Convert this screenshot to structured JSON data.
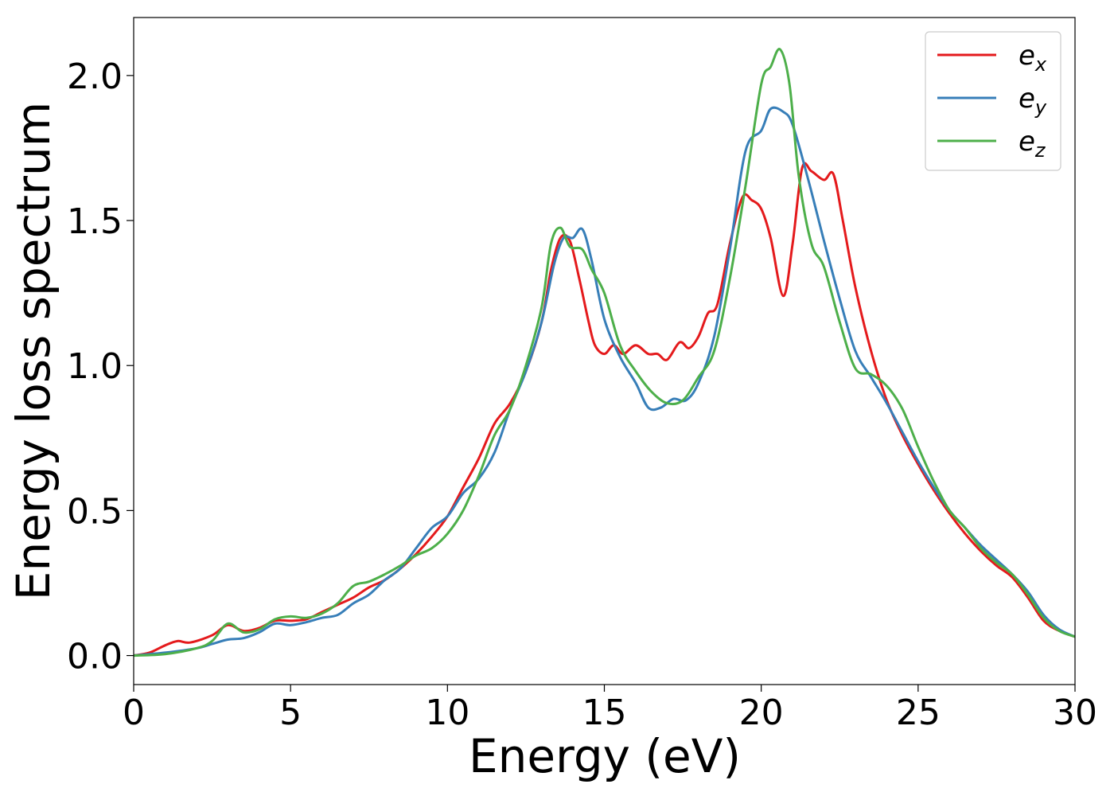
{
  "chart_data": {
    "type": "line",
    "xlabel": "Energy (eV)",
    "ylabel": "Energy loss spectrum",
    "xlim": [
      0,
      30
    ],
    "ylim": [
      -0.1,
      2.2
    ],
    "xticks": [
      0,
      5,
      10,
      15,
      20,
      25,
      30
    ],
    "xtick_labels": [
      "0",
      "5",
      "10",
      "15",
      "20",
      "25",
      "30"
    ],
    "yticks": [
      0.0,
      0.5,
      1.0,
      1.5,
      2.0
    ],
    "ytick_labels": [
      "0.0",
      "0.5",
      "1.0",
      "1.5",
      "2.0"
    ],
    "grid": false,
    "legend_position": "top-right",
    "series": [
      {
        "name": "e_x",
        "label_base": "e",
        "label_sub": "x",
        "color": "#e41a1c",
        "points": [
          [
            0,
            0
          ],
          [
            0.5,
            0.01
          ],
          [
            1,
            0.035
          ],
          [
            1.4,
            0.05
          ],
          [
            1.8,
            0.045
          ],
          [
            2.5,
            0.07
          ],
          [
            3,
            0.105
          ],
          [
            3.5,
            0.085
          ],
          [
            4,
            0.095
          ],
          [
            4.5,
            0.12
          ],
          [
            5,
            0.12
          ],
          [
            5.5,
            0.125
          ],
          [
            6,
            0.15
          ],
          [
            6.5,
            0.175
          ],
          [
            7,
            0.2
          ],
          [
            7.5,
            0.235
          ],
          [
            8,
            0.26
          ],
          [
            8.5,
            0.3
          ],
          [
            9,
            0.35
          ],
          [
            9.5,
            0.41
          ],
          [
            10,
            0.48
          ],
          [
            10.5,
            0.58
          ],
          [
            11,
            0.68
          ],
          [
            11.5,
            0.8
          ],
          [
            12,
            0.87
          ],
          [
            12.5,
            0.98
          ],
          [
            13,
            1.15
          ],
          [
            13.3,
            1.33
          ],
          [
            13.6,
            1.44
          ],
          [
            13.9,
            1.43
          ],
          [
            14.2,
            1.3
          ],
          [
            14.5,
            1.15
          ],
          [
            14.7,
            1.07
          ],
          [
            15,
            1.04
          ],
          [
            15.3,
            1.07
          ],
          [
            15.6,
            1.04
          ],
          [
            16,
            1.07
          ],
          [
            16.4,
            1.04
          ],
          [
            16.7,
            1.04
          ],
          [
            17,
            1.02
          ],
          [
            17.4,
            1.08
          ],
          [
            17.7,
            1.06
          ],
          [
            18,
            1.1
          ],
          [
            18.3,
            1.18
          ],
          [
            18.6,
            1.21
          ],
          [
            19,
            1.42
          ],
          [
            19.4,
            1.58
          ],
          [
            19.7,
            1.57
          ],
          [
            20,
            1.54
          ],
          [
            20.3,
            1.44
          ],
          [
            20.7,
            1.24
          ],
          [
            21,
            1.42
          ],
          [
            21.3,
            1.68
          ],
          [
            21.6,
            1.67
          ],
          [
            22,
            1.64
          ],
          [
            22.3,
            1.66
          ],
          [
            22.6,
            1.5
          ],
          [
            23,
            1.27
          ],
          [
            23.5,
            1.05
          ],
          [
            24,
            0.88
          ],
          [
            24.5,
            0.76
          ],
          [
            25,
            0.66
          ],
          [
            25.5,
            0.57
          ],
          [
            26,
            0.49
          ],
          [
            26.5,
            0.42
          ],
          [
            27,
            0.36
          ],
          [
            27.5,
            0.31
          ],
          [
            28,
            0.27
          ],
          [
            28.5,
            0.2
          ],
          [
            29,
            0.12
          ],
          [
            29.5,
            0.085
          ],
          [
            30,
            0.065
          ]
        ]
      },
      {
        "name": "e_y",
        "label_base": "e",
        "label_sub": "y",
        "color": "#377eb8",
        "points": [
          [
            0,
            0
          ],
          [
            1,
            0.01
          ],
          [
            2,
            0.025
          ],
          [
            2.5,
            0.04
          ],
          [
            3,
            0.055
          ],
          [
            3.5,
            0.06
          ],
          [
            4,
            0.08
          ],
          [
            4.5,
            0.11
          ],
          [
            5,
            0.105
          ],
          [
            5.5,
            0.115
          ],
          [
            6,
            0.13
          ],
          [
            6.5,
            0.14
          ],
          [
            7,
            0.18
          ],
          [
            7.5,
            0.21
          ],
          [
            8,
            0.26
          ],
          [
            8.5,
            0.3
          ],
          [
            9,
            0.37
          ],
          [
            9.5,
            0.44
          ],
          [
            10,
            0.48
          ],
          [
            10.5,
            0.56
          ],
          [
            11,
            0.61
          ],
          [
            11.5,
            0.7
          ],
          [
            12,
            0.85
          ],
          [
            12.5,
            0.98
          ],
          [
            13,
            1.15
          ],
          [
            13.4,
            1.35
          ],
          [
            13.7,
            1.44
          ],
          [
            14,
            1.44
          ],
          [
            14.3,
            1.47
          ],
          [
            14.6,
            1.36
          ],
          [
            15,
            1.16
          ],
          [
            15.5,
            1.03
          ],
          [
            16,
            0.94
          ],
          [
            16.4,
            0.855
          ],
          [
            16.8,
            0.855
          ],
          [
            17.2,
            0.885
          ],
          [
            17.6,
            0.88
          ],
          [
            18,
            0.94
          ],
          [
            18.5,
            1.1
          ],
          [
            19,
            1.4
          ],
          [
            19.5,
            1.74
          ],
          [
            20,
            1.81
          ],
          [
            20.3,
            1.885
          ],
          [
            20.7,
            1.875
          ],
          [
            21,
            1.83
          ],
          [
            21.5,
            1.64
          ],
          [
            22,
            1.43
          ],
          [
            22.5,
            1.23
          ],
          [
            23,
            1.05
          ],
          [
            23.5,
            0.96
          ],
          [
            24,
            0.87
          ],
          [
            24.5,
            0.77
          ],
          [
            25,
            0.67
          ],
          [
            25.5,
            0.58
          ],
          [
            26,
            0.5
          ],
          [
            26.5,
            0.44
          ],
          [
            27,
            0.38
          ],
          [
            27.5,
            0.33
          ],
          [
            28,
            0.28
          ],
          [
            28.5,
            0.22
          ],
          [
            29,
            0.14
          ],
          [
            29.5,
            0.09
          ],
          [
            30,
            0.065
          ]
        ]
      },
      {
        "name": "e_z",
        "label_base": "e",
        "label_sub": "z",
        "color": "#4daf4a",
        "points": [
          [
            0,
            0
          ],
          [
            1,
            0.005
          ],
          [
            2,
            0.025
          ],
          [
            2.5,
            0.05
          ],
          [
            3,
            0.11
          ],
          [
            3.5,
            0.08
          ],
          [
            4,
            0.09
          ],
          [
            4.5,
            0.125
          ],
          [
            5,
            0.135
          ],
          [
            5.5,
            0.13
          ],
          [
            6,
            0.145
          ],
          [
            6.5,
            0.18
          ],
          [
            7,
            0.24
          ],
          [
            7.5,
            0.255
          ],
          [
            8,
            0.28
          ],
          [
            8.5,
            0.31
          ],
          [
            9,
            0.345
          ],
          [
            9.5,
            0.37
          ],
          [
            10,
            0.42
          ],
          [
            10.5,
            0.5
          ],
          [
            11,
            0.62
          ],
          [
            11.5,
            0.76
          ],
          [
            12,
            0.85
          ],
          [
            12.5,
            1.0
          ],
          [
            13,
            1.2
          ],
          [
            13.3,
            1.42
          ],
          [
            13.6,
            1.475
          ],
          [
            13.9,
            1.41
          ],
          [
            14.3,
            1.4
          ],
          [
            14.6,
            1.33
          ],
          [
            15,
            1.25
          ],
          [
            15.5,
            1.07
          ],
          [
            16,
            0.98
          ],
          [
            16.5,
            0.91
          ],
          [
            17,
            0.87
          ],
          [
            17.5,
            0.88
          ],
          [
            18,
            0.96
          ],
          [
            18.5,
            1.05
          ],
          [
            19,
            1.3
          ],
          [
            19.5,
            1.62
          ],
          [
            20,
            1.97
          ],
          [
            20.3,
            2.03
          ],
          [
            20.6,
            2.09
          ],
          [
            20.9,
            1.97
          ],
          [
            21.2,
            1.65
          ],
          [
            21.6,
            1.42
          ],
          [
            22,
            1.34
          ],
          [
            22.5,
            1.15
          ],
          [
            23,
            0.99
          ],
          [
            23.5,
            0.97
          ],
          [
            24,
            0.93
          ],
          [
            24.5,
            0.85
          ],
          [
            25,
            0.72
          ],
          [
            25.5,
            0.6
          ],
          [
            26,
            0.5
          ],
          [
            26.5,
            0.44
          ],
          [
            27,
            0.37
          ],
          [
            27.5,
            0.32
          ],
          [
            28,
            0.28
          ],
          [
            28.5,
            0.21
          ],
          [
            29,
            0.13
          ],
          [
            29.5,
            0.085
          ],
          [
            30,
            0.065
          ]
        ]
      }
    ]
  }
}
